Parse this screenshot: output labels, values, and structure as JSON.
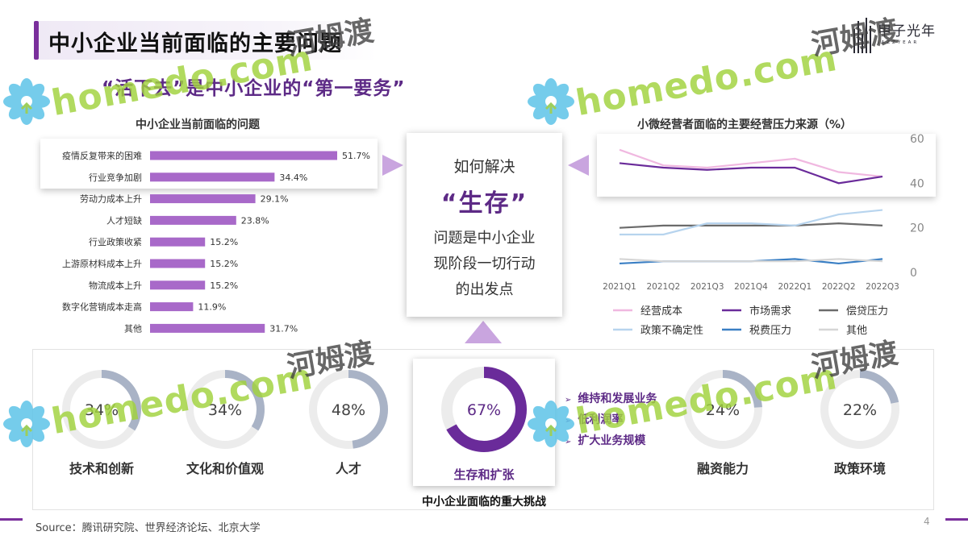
{
  "title": "中小企业当前面临的主要问题",
  "subtitle": "“活下去”是中小企业的“第一要务”",
  "logo": {
    "name": "甲子光年",
    "sub": "JAZZYEAR"
  },
  "left_chart_title": "中小企业当前面临的问题",
  "right_chart_title": "小微经营者面临的主要经营压力来源（%）",
  "center_box": {
    "question": "如何解决",
    "highlight": "“生存”",
    "line1": "问题是中小企业",
    "line2": "现阶段一切行动",
    "line3": "的出发点"
  },
  "bottom": {
    "caption": "中小企业面临的重大挑战",
    "donuts": [
      {
        "label": "技术和创新",
        "value": 34,
        "text": "34%"
      },
      {
        "label": "文化和价值观",
        "value": 34,
        "text": "34%"
      },
      {
        "label": "人才",
        "value": 48,
        "text": "48%"
      },
      {
        "label": "生存和扩张",
        "value": 67,
        "text": "67%"
      },
      {
        "label": "融资能力",
        "value": 24,
        "text": "24%"
      },
      {
        "label": "政策环境",
        "value": 22,
        "text": "22%"
      }
    ],
    "highlight_points": [
      "维持和发展业务",
      "低利润率",
      "扩大业务规模"
    ]
  },
  "source": "Source：腾讯研究院、世界经济论坛、北京大学",
  "page_number": "4",
  "watermark": {
    "text": "homedo.com",
    "cn": "河姆渡"
  },
  "colors": {
    "accent": "#7a2f9c",
    "bar": "#a869c9",
    "donut_track": "#ececec",
    "donut_fill": "#a9b3c6",
    "donut_highlight": "#6a2b9a"
  },
  "chart_data": [
    {
      "type": "bar",
      "orientation": "horizontal",
      "title": "中小企业当前面临的问题",
      "categories": [
        "疫情反复带来的困难",
        "行业竞争加剧",
        "劳动力成本上升",
        "人才短缺",
        "行业政策收紧",
        "上游原材料成本上升",
        "物流成本上升",
        "数字化营销成本走高",
        "其他"
      ],
      "values": [
        51.7,
        34.4,
        29.1,
        23.8,
        15.2,
        15.2,
        15.2,
        11.9,
        31.7
      ],
      "labels": [
        "51.7%",
        "34.4%",
        "29.1%",
        "23.8%",
        "15.2%",
        "15.2%",
        "15.2%",
        "11.9%",
        "31.7%"
      ]
    },
    {
      "type": "line",
      "title": "小微经营者面临的主要经营压力来源（%）",
      "categories": [
        "2021Q1",
        "2021Q2",
        "2021Q3",
        "2021Q4",
        "2022Q1",
        "2022Q2",
        "2022Q3"
      ],
      "ylim": [
        0,
        60
      ],
      "yticks": [
        "60",
        "40",
        "20",
        "0"
      ],
      "legend_position": "bottom",
      "series": [
        {
          "name": "经营成本",
          "color": "#f0b8e0",
          "values": [
            55,
            48,
            47,
            49,
            51,
            45,
            43
          ]
        },
        {
          "name": "市场需求",
          "color": "#6a2b9a",
          "values": [
            49,
            47,
            46,
            47,
            47,
            40,
            43
          ]
        },
        {
          "name": "偿贷压力",
          "color": "#6b6b6b",
          "values": [
            20,
            21,
            21,
            21,
            21,
            22,
            21
          ]
        },
        {
          "name": "政策不确定性",
          "color": "#b7d4ee",
          "values": [
            17,
            17,
            22,
            22,
            21,
            26,
            28
          ]
        },
        {
          "name": "税费压力",
          "color": "#3a7fc4",
          "values": [
            4,
            5,
            5,
            5,
            6,
            4,
            6
          ]
        },
        {
          "name": "其他",
          "color": "#d6d6d6",
          "values": [
            6,
            5,
            5,
            5,
            5,
            6,
            5
          ]
        }
      ]
    }
  ]
}
